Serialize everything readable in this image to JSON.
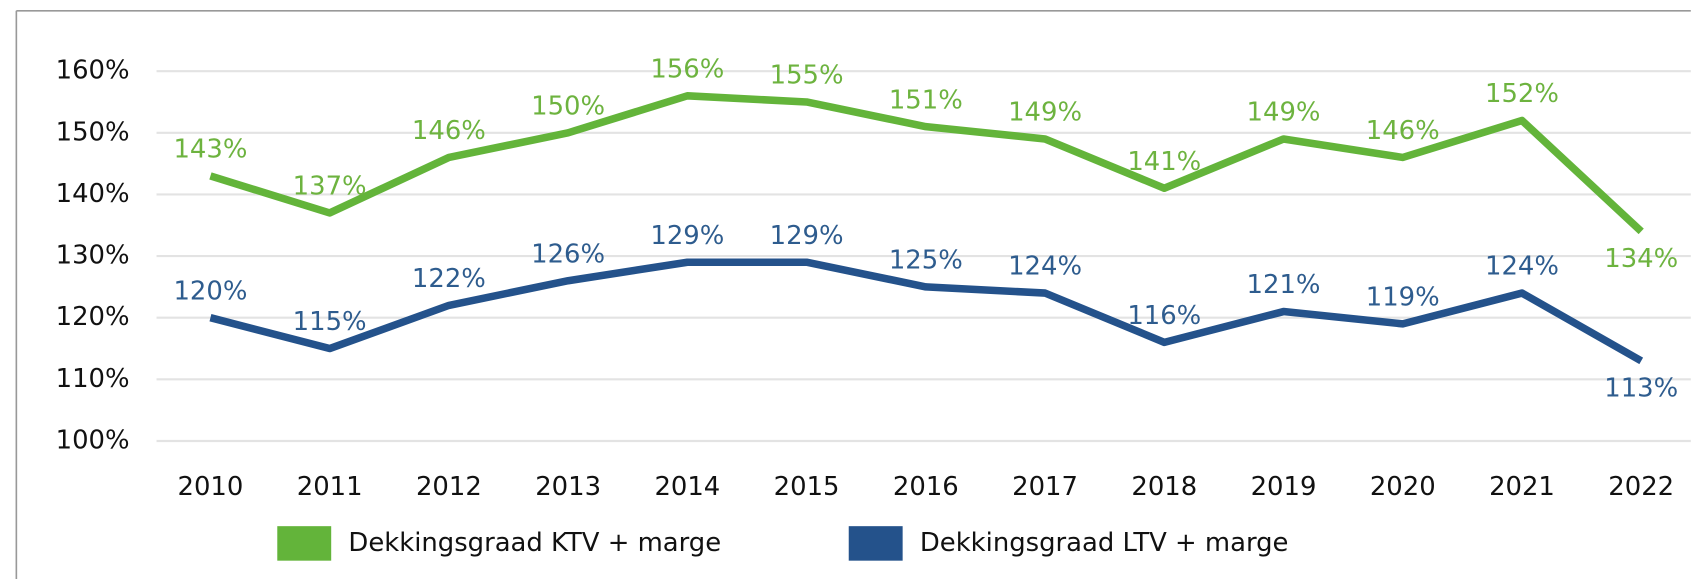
{
  "chart_data": {
    "type": "line",
    "categories": [
      "2010",
      "2011",
      "2012",
      "2013",
      "2014",
      "2015",
      "2016",
      "2017",
      "2018",
      "2019",
      "2020",
      "2021",
      "2022"
    ],
    "series": [
      {
        "name": "Dekkingsgraad KTV + marge",
        "color": "#63b43a",
        "values": [
          143,
          137,
          146,
          150,
          156,
          155,
          151,
          149,
          141,
          149,
          146,
          152,
          134
        ],
        "value_labels": [
          "143%",
          "137%",
          "146%",
          "150%",
          "156%",
          "155%",
          "151%",
          "149%",
          "141%",
          "149%",
          "146%",
          "152%",
          "134%"
        ]
      },
      {
        "name": "Dekkingsgraad LTV + marge",
        "color": "#24528b",
        "values": [
          120,
          115,
          122,
          126,
          129,
          129,
          125,
          124,
          116,
          121,
          119,
          124,
          113
        ],
        "value_labels": [
          "120%",
          "115%",
          "122%",
          "126%",
          "129%",
          "129%",
          "125%",
          "124%",
          "116%",
          "121%",
          "119%",
          "124%",
          "113%"
        ]
      }
    ],
    "ylim": [
      100,
      160
    ],
    "yticks": [
      {
        "value": 100,
        "label": "100%"
      },
      {
        "value": 110,
        "label": "110%"
      },
      {
        "value": 120,
        "label": "120%"
      },
      {
        "value": 130,
        "label": "130%"
      },
      {
        "value": 140,
        "label": "140%"
      },
      {
        "value": 150,
        "label": "150%"
      },
      {
        "value": 160,
        "label": "160%"
      }
    ],
    "grid": true,
    "legend": "bottom"
  }
}
